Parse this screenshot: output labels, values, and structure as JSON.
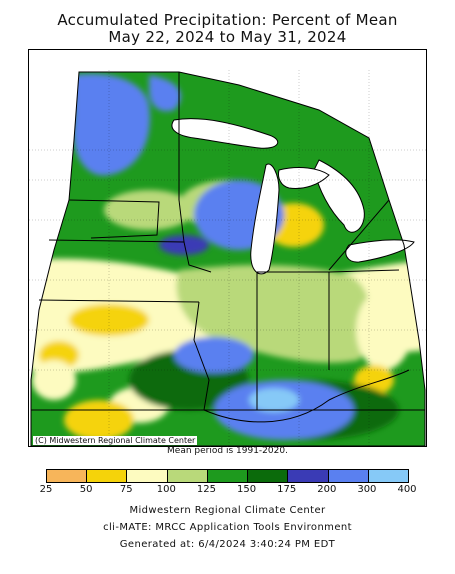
{
  "title": {
    "line1": "Accumulated Precipitation: Percent of Mean",
    "line2": "May 22, 2024 to May 31, 2024"
  },
  "map": {
    "credit": "(C) Midwestern Regional Climate Center",
    "mean_period": "Mean period is 1991-2020."
  },
  "legend": {
    "colors": [
      "#f7b55a",
      "#f5d30a",
      "#fdfbc0",
      "#b9d97a",
      "#1e9a1e",
      "#0b6b0b",
      "#3a3bb5",
      "#5a80f0",
      "#86c9f7"
    ],
    "labels": [
      "25",
      "50",
      "75",
      "100",
      "125",
      "150",
      "175",
      "200",
      "300",
      "400"
    ]
  },
  "footer": {
    "line1": "Midwestern Regional Climate Center",
    "line2": "cli-MATE: MRCC Application Tools Environment",
    "line3": "Generated at: 6/4/2024 3:40:24 PM EDT"
  }
}
